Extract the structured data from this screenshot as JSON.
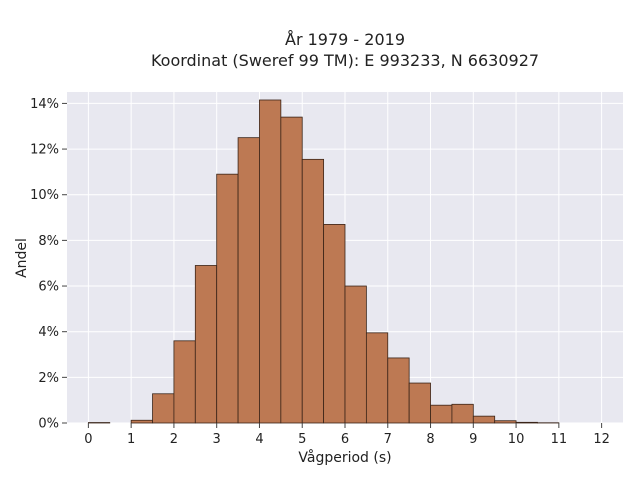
{
  "chart_data": {
    "type": "bar",
    "title_lines": [
      "År 1979 - 2019",
      "Koordinat (Sweref 99 TM): E 993233, N 6630927"
    ],
    "xlabel": "Vågperiod (s)",
    "ylabel": "Andel",
    "x_ticks": [
      "0",
      "1",
      "2",
      "3",
      "4",
      "5",
      "6",
      "7",
      "8",
      "9",
      "10",
      "11",
      "12"
    ],
    "y_ticks": [
      "0%",
      "2%",
      "4%",
      "6%",
      "8%",
      "10%",
      "12%",
      "14%"
    ],
    "xlim": [
      -0.5,
      12.5
    ],
    "ylim": [
      0,
      14.5
    ],
    "bin_width": 0.5,
    "bins_start": [
      0,
      0.5,
      1,
      1.5,
      2,
      2.5,
      3,
      3.5,
      4,
      4.5,
      5,
      5.5,
      6,
      6.5,
      7,
      7.5,
      8,
      8.5,
      9,
      9.5,
      10,
      10.5,
      11,
      11.5
    ],
    "values": [
      0.02,
      0.0,
      0.12,
      1.28,
      3.6,
      6.9,
      10.9,
      12.5,
      14.15,
      13.4,
      11.55,
      8.7,
      6.0,
      3.95,
      2.85,
      1.75,
      0.78,
      0.82,
      0.3,
      0.1,
      0.03,
      0.01,
      0.0,
      0.0
    ],
    "bar_color": "#bd7953",
    "bar_edge_color": "#3a2418",
    "background_color": "#e8e8f0",
    "grid": true
  }
}
